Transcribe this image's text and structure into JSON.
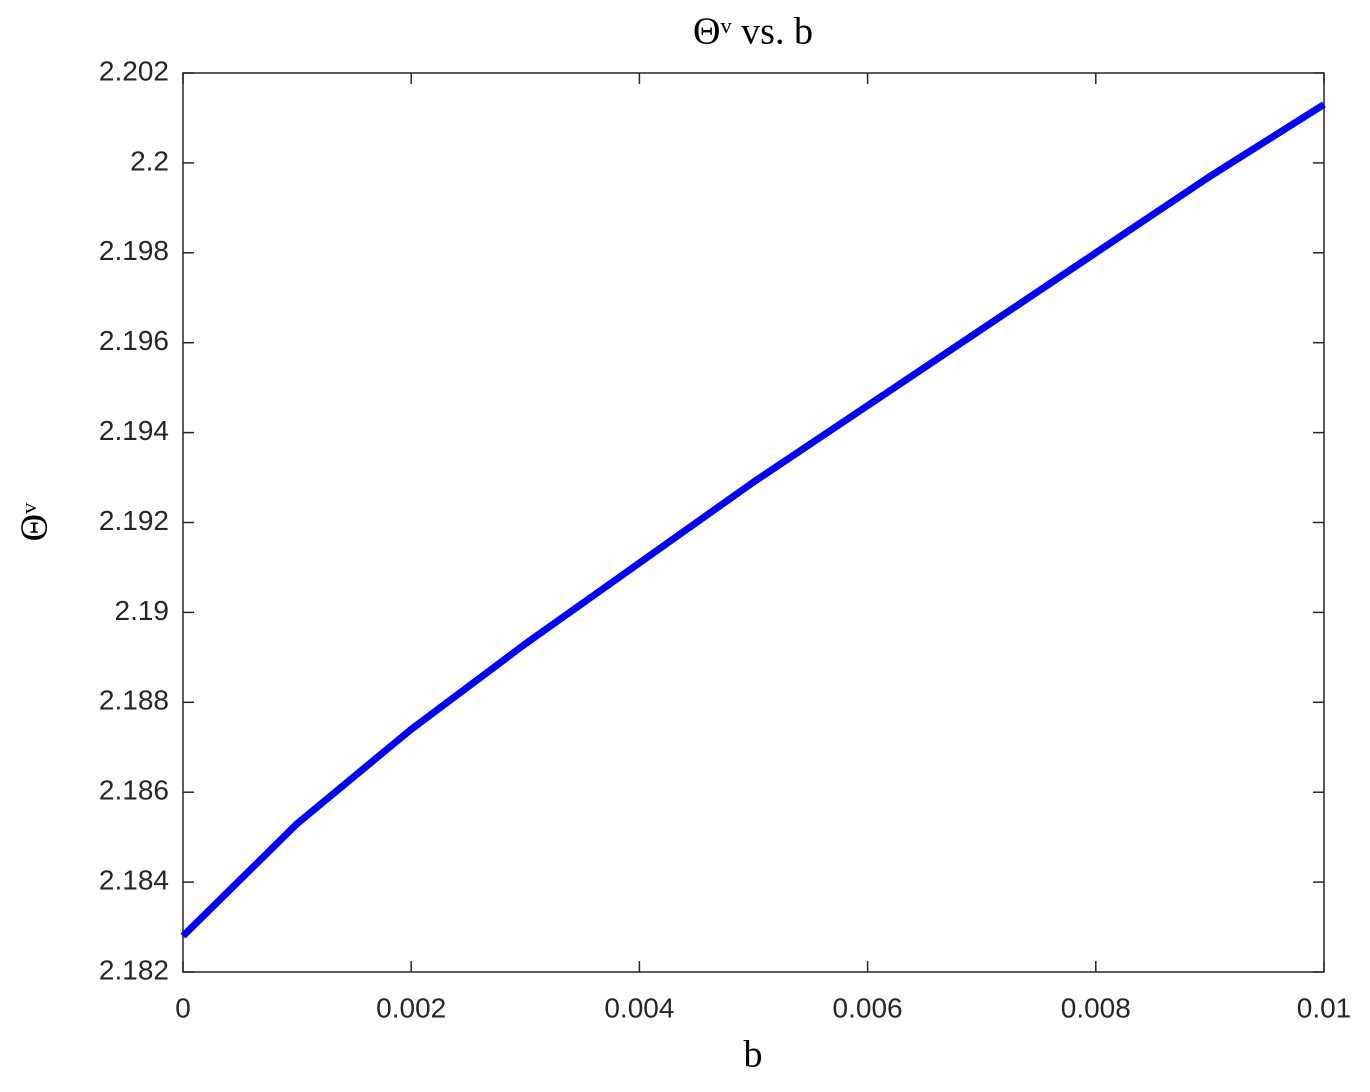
{
  "chart_data": {
    "type": "line",
    "title": "Θᵛ vs. b",
    "xlabel": "b",
    "ylabel": "Θᵛ",
    "x": [
      0,
      0.001,
      0.002,
      0.003,
      0.004,
      0.005,
      0.006,
      0.007,
      0.008,
      0.009,
      0.01
    ],
    "series": [
      {
        "color": "#0000ff",
        "values": [
          2.1828,
          2.1853,
          2.1874,
          2.1893,
          2.1911,
          2.1929,
          2.1946,
          2.1963,
          2.198,
          2.1997,
          2.2013
        ]
      }
    ],
    "xlim": [
      0,
      0.01
    ],
    "xticks": [
      0,
      0.002,
      0.004,
      0.006,
      0.008,
      0.01
    ],
    "ylim": [
      2.182,
      2.202
    ],
    "yticks": [
      2.182,
      2.184,
      2.186,
      2.188,
      2.19,
      2.192,
      2.194,
      2.196,
      2.198,
      2.2,
      2.202
    ],
    "grid": false
  }
}
